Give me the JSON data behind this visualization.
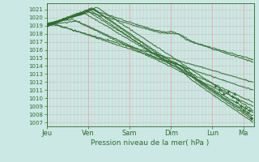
{
  "title": "Pression niveau de la mer( hPa )",
  "bg_color": "#cce8e4",
  "grid_h_color": "#b0c8c8",
  "grid_v_color": "#ddb8b8",
  "line_color": "#2d6a2d",
  "ylim": [
    1006.5,
    1021.8
  ],
  "yticks": [
    1007,
    1008,
    1009,
    1010,
    1011,
    1012,
    1013,
    1014,
    1015,
    1016,
    1017,
    1018,
    1019,
    1020,
    1021
  ],
  "day_labels": [
    "Jeu",
    "Ven",
    "Sam",
    "Dim",
    "Lun",
    "Ma"
  ],
  "day_positions": [
    0,
    48,
    96,
    144,
    192,
    228
  ],
  "xlim": [
    0,
    240
  ],
  "num_points": 240,
  "line_width": 0.7,
  "marker_size": 2.0
}
